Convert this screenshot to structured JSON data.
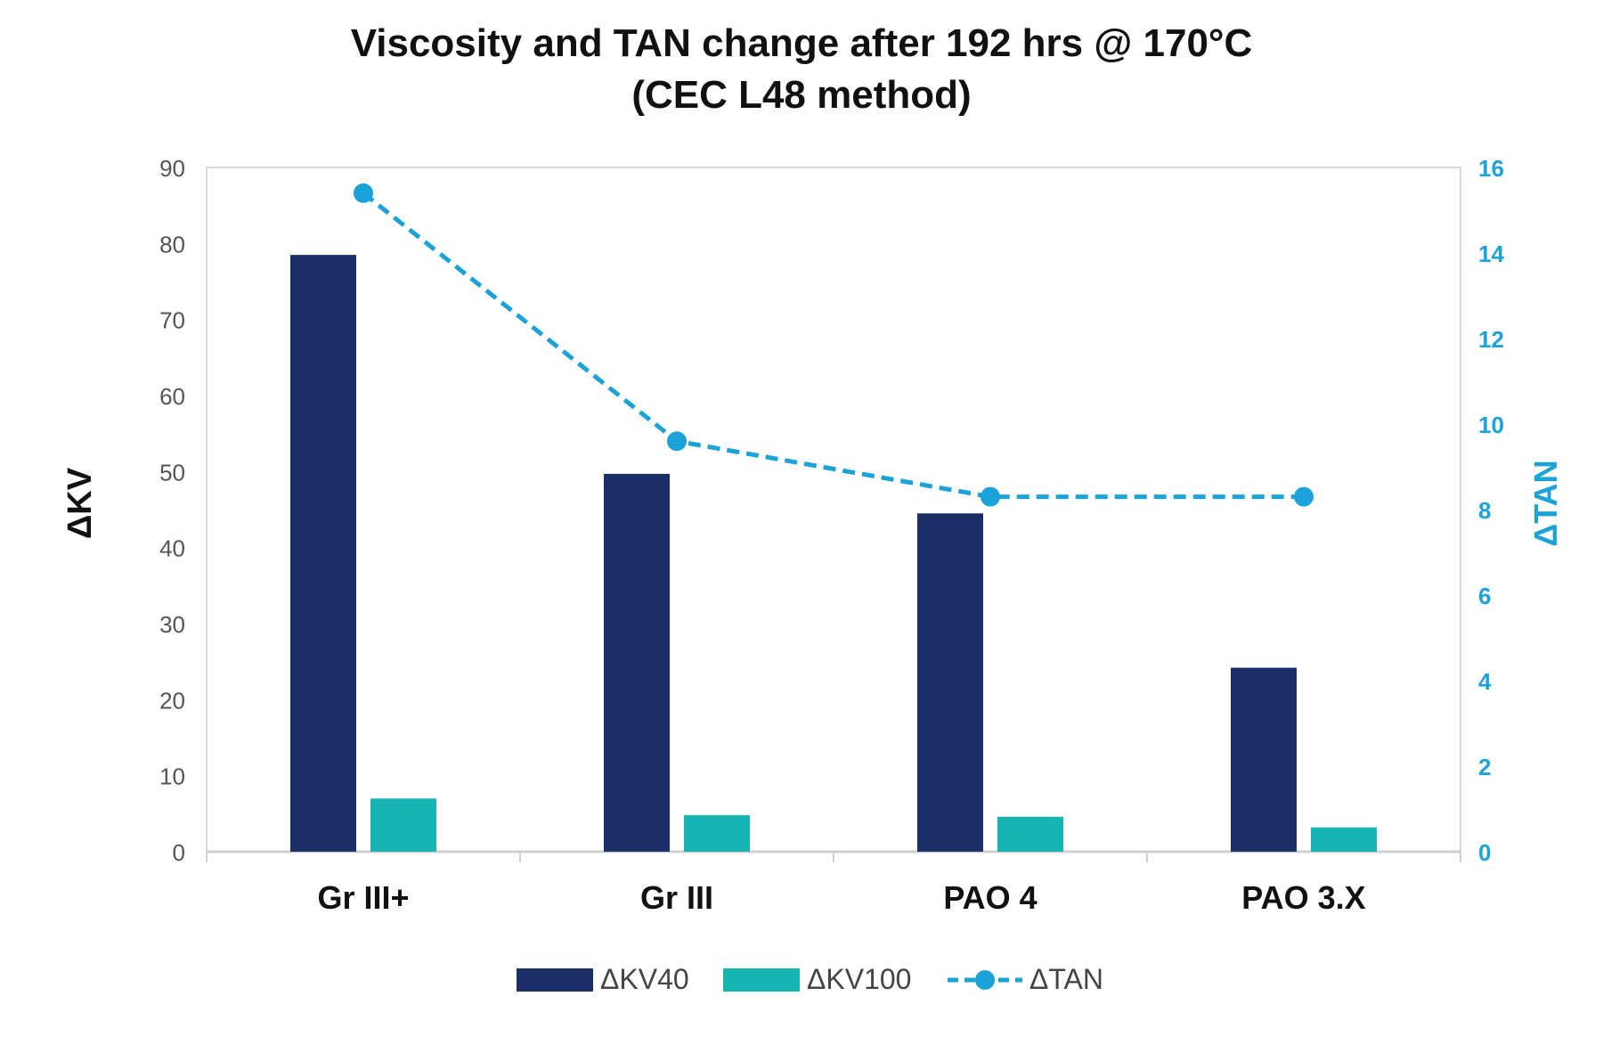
{
  "chart_data": {
    "type": "bar",
    "title": "Viscosity and TAN change after 192 hrs @ 170°C",
    "subtitle": "(CEC L48 method)",
    "categories": [
      "Gr III+",
      "Gr III",
      "PAO 4",
      "PAO 3.X"
    ],
    "ylabel": "ΔKV",
    "y2label": "ΔTAN",
    "ylim": [
      0,
      90
    ],
    "y2lim": [
      0,
      16
    ],
    "yticks": [
      "0",
      "10",
      "20",
      "30",
      "40",
      "50",
      "60",
      "70",
      "80",
      "90"
    ],
    "y2ticks": [
      "0",
      "2",
      "4",
      "6",
      "8",
      "10",
      "12",
      "14",
      "16"
    ],
    "series": [
      {
        "name": "ΔKV40",
        "type": "bar",
        "axis": "left",
        "color": "#1b2f66",
        "values": [
          78.5,
          49.7,
          44.5,
          24.2
        ]
      },
      {
        "name": "ΔKV100",
        "type": "bar",
        "axis": "left",
        "color": "#18b4b4",
        "values": [
          7.0,
          4.8,
          4.6,
          3.2
        ]
      },
      {
        "name": "ΔTAN",
        "type": "line",
        "axis": "right",
        "color": "#1ba2d9",
        "values": [
          15.4,
          9.6,
          8.3,
          8.3
        ]
      }
    ],
    "legend_position": "bottom",
    "grid": false
  }
}
